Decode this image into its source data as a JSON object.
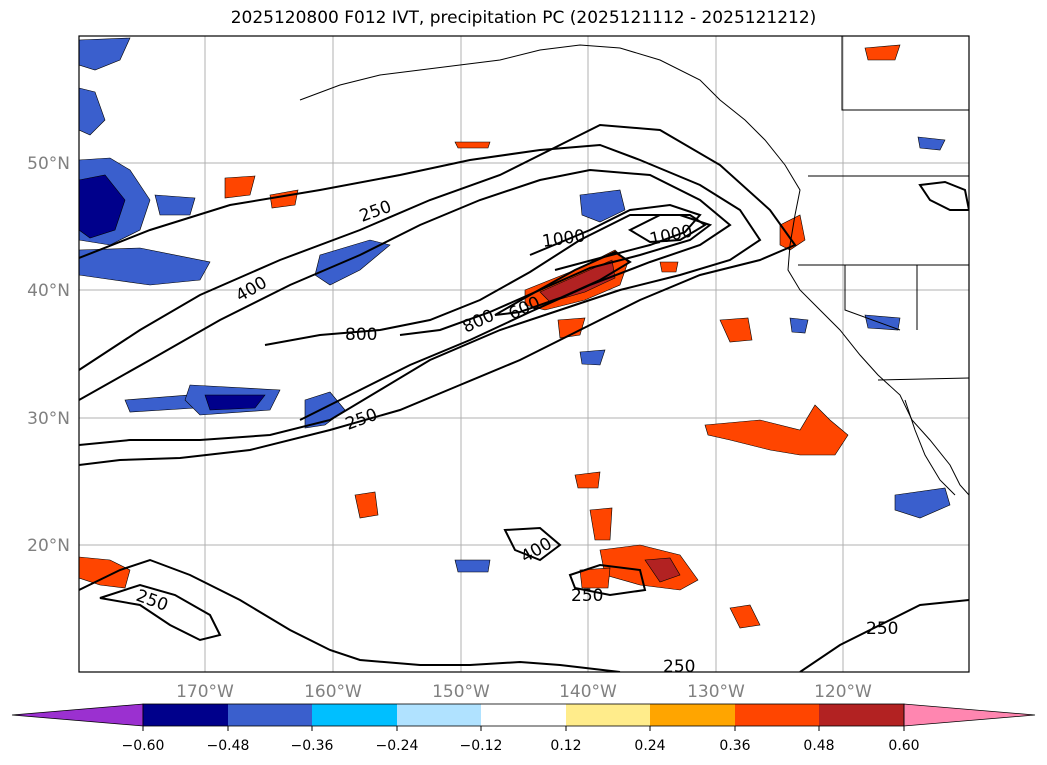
{
  "title": "2025120800 F012 IVT, precipitation PC (2025121112 - 2025121212)",
  "map": {
    "lat_labels": [
      "50°N",
      "40°N",
      "30°N",
      "20°N"
    ],
    "lon_labels": [
      "170°W",
      "160°W",
      "150°W",
      "140°W",
      "130°W",
      "120°W"
    ],
    "ivt_contour_labels": [
      "250",
      "400",
      "800",
      "1000",
      "1000",
      "800",
      "600",
      "250",
      "250",
      "400",
      "250",
      "250",
      "250"
    ],
    "land_color": "#ffffff",
    "contour_color": "#000000"
  },
  "colorbar": {
    "ticks": [
      "−0.60",
      "−0.48",
      "−0.36",
      "−0.24",
      "−0.12",
      "0.12",
      "0.24",
      "0.36",
      "0.48",
      "0.60"
    ],
    "colors": [
      "#9b30d0",
      "#00008b",
      "#3a5fcd",
      "#00bfff",
      "#b0e2ff",
      "#ffffff",
      "#ffec8b",
      "#ffa500",
      "#ff4500",
      "#b22222",
      "#ff86b0"
    ]
  }
}
